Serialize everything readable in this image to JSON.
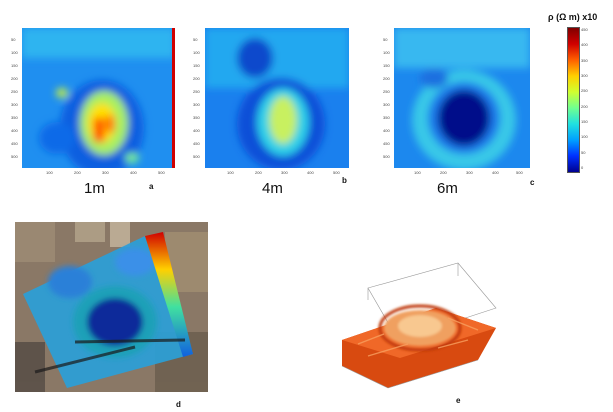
{
  "panels": [
    {
      "depth": "1m",
      "letter": "a"
    },
    {
      "depth": "4m",
      "letter": "b"
    },
    {
      "depth": "6m",
      "letter": "c"
    }
  ],
  "photo_letter": "d",
  "model_letter": "e",
  "colorbar": {
    "title": "ρ (Ω m) x10",
    "ticks": [
      "0",
      "50",
      "100",
      "150",
      "200",
      "250",
      "300",
      "350",
      "400",
      "450"
    ],
    "colors": [
      "#00008f",
      "#0030ff",
      "#00a0ff",
      "#20e0e0",
      "#70ff90",
      "#d0ff30",
      "#ffd000",
      "#ff6000",
      "#d00000",
      "#800000"
    ]
  },
  "y_ticks": [
    "50",
    "100",
    "150",
    "200",
    "250",
    "300",
    "350",
    "400",
    "450",
    "500"
  ],
  "x_ticks": [
    "100",
    "200",
    "300",
    "400",
    "500"
  ]
}
